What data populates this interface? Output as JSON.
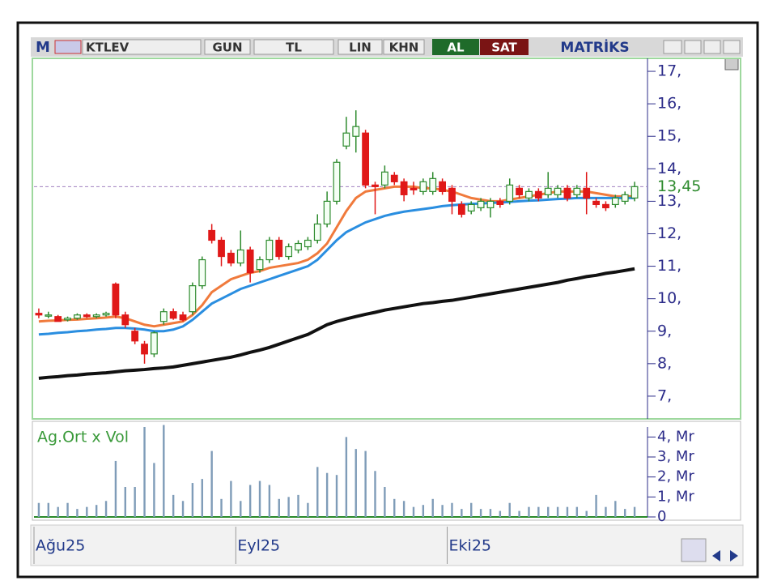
{
  "toolbar": {
    "logo": "M",
    "symbol": "KTLEV",
    "period": "GUN",
    "currency": "TL",
    "scale": "LIN",
    "mode": "KHN",
    "buy": "AL",
    "sell": "SAT",
    "brand": "MATRİKS"
  },
  "chart_data": [
    {
      "type": "candlestick",
      "categories": [
        "Ağu25",
        null,
        null,
        null,
        null,
        null,
        null,
        null,
        null,
        null,
        null,
        null,
        null,
        null,
        null,
        null,
        null,
        null,
        null,
        null,
        null,
        "Eyl25",
        null,
        null,
        null,
        null,
        null,
        null,
        null,
        null,
        null,
        null,
        null,
        null,
        null,
        null,
        null,
        null,
        null,
        null,
        null,
        null,
        null,
        "Eki25",
        null,
        null,
        null,
        null,
        null,
        null,
        null,
        null,
        null,
        null,
        null,
        null,
        null,
        null,
        null,
        null,
        null,
        null,
        null
      ],
      "open": [
        9.55,
        9.5,
        9.45,
        9.35,
        9.4,
        9.5,
        9.45,
        9.5,
        10.45,
        9.5,
        9.0,
        8.6,
        8.3,
        9.3,
        9.6,
        9.5,
        9.6,
        10.4,
        12.1,
        11.8,
        11.4,
        11.1,
        11.5,
        10.9,
        11.2,
        11.8,
        11.3,
        11.5,
        11.6,
        11.8,
        12.3,
        13.0,
        14.7,
        15.0,
        15.1,
        13.5,
        13.5,
        13.8,
        13.6,
        13.4,
        13.3,
        13.3,
        13.6,
        13.4,
        12.9,
        12.7,
        12.8,
        12.8,
        13.0,
        13.0,
        13.4,
        13.1,
        13.3,
        13.2,
        13.2,
        13.4,
        13.2,
        13.4,
        13.0,
        12.9,
        12.9,
        13.0,
        13.1
      ],
      "high": [
        9.7,
        9.6,
        9.5,
        9.45,
        9.55,
        9.55,
        9.55,
        9.6,
        10.5,
        9.6,
        9.1,
        8.7,
        9.0,
        9.7,
        9.7,
        9.6,
        10.5,
        11.3,
        12.3,
        11.9,
        11.5,
        12.1,
        11.6,
        11.3,
        11.9,
        11.9,
        11.7,
        11.8,
        11.9,
        12.6,
        13.3,
        14.3,
        15.6,
        15.8,
        15.2,
        13.6,
        14.1,
        13.9,
        13.7,
        13.6,
        13.7,
        13.9,
        13.7,
        13.5,
        13.0,
        13.0,
        13.1,
        13.1,
        13.1,
        13.7,
        13.5,
        13.4,
        13.4,
        13.9,
        13.5,
        13.5,
        13.5,
        13.9,
        13.1,
        13.0,
        13.2,
        13.3,
        13.6
      ],
      "low": [
        9.4,
        9.4,
        9.3,
        9.3,
        9.35,
        9.4,
        9.4,
        9.45,
        9.4,
        9.1,
        8.6,
        8.0,
        8.2,
        9.2,
        9.35,
        9.3,
        9.5,
        10.3,
        11.7,
        11.0,
        11.0,
        11.0,
        10.5,
        10.8,
        11.1,
        11.2,
        11.2,
        11.4,
        11.5,
        11.7,
        12.2,
        12.9,
        14.6,
        14.5,
        13.4,
        12.6,
        13.4,
        13.5,
        13.0,
        13.2,
        13.2,
        13.2,
        13.2,
        12.6,
        12.5,
        12.6,
        12.7,
        12.5,
        12.8,
        12.9,
        13.1,
        13.0,
        13.0,
        13.1,
        13.1,
        13.0,
        13.1,
        12.6,
        12.8,
        12.7,
        12.8,
        12.9,
        13.0
      ],
      "close": [
        9.5,
        9.5,
        9.3,
        9.4,
        9.5,
        9.45,
        9.5,
        9.55,
        9.5,
        9.2,
        8.7,
        8.3,
        8.95,
        9.6,
        9.4,
        9.35,
        10.4,
        11.2,
        11.8,
        11.3,
        11.1,
        11.5,
        10.8,
        11.2,
        11.8,
        11.3,
        11.6,
        11.7,
        11.8,
        12.3,
        13.0,
        14.2,
        15.1,
        15.3,
        13.5,
        13.45,
        13.9,
        13.6,
        13.2,
        13.35,
        13.6,
        13.7,
        13.3,
        13.0,
        12.6,
        12.9,
        13.0,
        13.0,
        12.9,
        13.5,
        13.2,
        13.3,
        13.1,
        13.4,
        13.4,
        13.1,
        13.4,
        13.1,
        12.9,
        12.8,
        13.1,
        13.2,
        13.45
      ],
      "up_color": "#2e8b2e",
      "down_color": "#e01818",
      "lines": [
        {
          "color": "#f07a3c",
          "values": [
            9.3,
            9.32,
            9.33,
            9.35,
            9.36,
            9.38,
            9.4,
            9.42,
            9.45,
            9.4,
            9.3,
            9.2,
            9.15,
            9.2,
            9.25,
            9.3,
            9.5,
            9.8,
            10.2,
            10.4,
            10.6,
            10.7,
            10.8,
            10.85,
            10.95,
            11.0,
            11.05,
            11.1,
            11.2,
            11.4,
            11.7,
            12.2,
            12.7,
            13.1,
            13.3,
            13.35,
            13.4,
            13.45,
            13.45,
            13.45,
            13.4,
            13.4,
            13.35,
            13.3,
            13.2,
            13.1,
            13.05,
            13.0,
            13.0,
            13.05,
            13.1,
            13.15,
            13.2,
            13.25,
            13.3,
            13.3,
            13.3,
            13.3,
            13.25,
            13.2,
            13.15,
            13.15,
            13.15
          ]
        },
        {
          "color": "#2a8ee0",
          "values": [
            8.9,
            8.92,
            8.95,
            8.97,
            9.0,
            9.02,
            9.05,
            9.07,
            9.1,
            9.1,
            9.08,
            9.05,
            9.0,
            9.0,
            9.05,
            9.15,
            9.35,
            9.6,
            9.85,
            10.0,
            10.15,
            10.3,
            10.4,
            10.5,
            10.6,
            10.7,
            10.8,
            10.9,
            11.0,
            11.2,
            11.5,
            11.8,
            12.05,
            12.2,
            12.35,
            12.45,
            12.55,
            12.62,
            12.68,
            12.72,
            12.76,
            12.8,
            12.85,
            12.88,
            12.9,
            12.92,
            12.93,
            12.95,
            12.96,
            12.98,
            13.0,
            13.02,
            13.03,
            13.05,
            13.07,
            13.08,
            13.1,
            13.1,
            13.1,
            13.1,
            13.1,
            13.1,
            13.1
          ]
        },
        {
          "color": "#111111",
          "values": [
            7.55,
            7.58,
            7.6,
            7.63,
            7.65,
            7.68,
            7.7,
            7.72,
            7.75,
            7.78,
            7.8,
            7.82,
            7.85,
            7.87,
            7.9,
            7.95,
            8.0,
            8.05,
            8.1,
            8.15,
            8.2,
            8.27,
            8.35,
            8.42,
            8.5,
            8.6,
            8.7,
            8.8,
            8.9,
            9.05,
            9.2,
            9.3,
            9.38,
            9.45,
            9.52,
            9.58,
            9.65,
            9.7,
            9.75,
            9.8,
            9.85,
            9.88,
            9.92,
            9.95,
            10.0,
            10.05,
            10.1,
            10.15,
            10.2,
            10.25,
            10.3,
            10.35,
            10.4,
            10.45,
            10.5,
            10.57,
            10.62,
            10.68,
            10.72,
            10.78,
            10.82,
            10.87,
            10.92
          ]
        }
      ],
      "last_price": {
        "value": 13.45,
        "label": "13,45"
      },
      "last_color": "#2e8b2e",
      "ylim": [
        6.3,
        17.4
      ],
      "yticks": [
        {
          "value": 7,
          "label": "7,"
        },
        {
          "value": 8,
          "label": "8,"
        },
        {
          "value": 9,
          "label": "9,"
        },
        {
          "value": 10,
          "label": "10,"
        },
        {
          "value": 11,
          "label": "11,"
        },
        {
          "value": 12,
          "label": "12,"
        },
        {
          "value": 13,
          "label": "13,"
        },
        {
          "value": 14,
          "label": "14,"
        },
        {
          "value": 15,
          "label": "15,"
        },
        {
          "value": 16,
          "label": "16,"
        },
        {
          "value": 17,
          "label": "17,"
        }
      ]
    },
    {
      "type": "bar",
      "title": "Ag.Ort x Vol",
      "color": "#7f9cb8",
      "values": [
        0.7,
        0.7,
        0.5,
        0.7,
        0.4,
        0.5,
        0.6,
        0.8,
        2.8,
        1.5,
        1.5,
        4.5,
        2.7,
        4.6,
        1.1,
        0.8,
        1.7,
        1.9,
        3.3,
        0.9,
        1.8,
        0.8,
        1.6,
        1.8,
        1.6,
        0.9,
        1.0,
        1.1,
        0.7,
        2.5,
        2.2,
        2.1,
        4.0,
        3.4,
        3.3,
        2.3,
        1.5,
        0.9,
        0.8,
        0.5,
        0.6,
        0.9,
        0.6,
        0.7,
        0.4,
        0.7,
        0.4,
        0.4,
        0.3,
        0.7,
        0.3,
        0.5,
        0.5,
        0.5,
        0.5,
        0.5,
        0.5,
        0.3,
        1.1,
        0.5,
        0.8,
        0.4,
        0.5
      ],
      "ylim": [
        0,
        4.5
      ],
      "yticks": [
        0,
        {
          "value": 1,
          "label": "1, Mr"
        },
        {
          "value": 2,
          "label": "2, Mr"
        },
        {
          "value": 3,
          "label": "3, Mr"
        },
        {
          "value": 4,
          "label": "4, Mr"
        }
      ]
    }
  ]
}
